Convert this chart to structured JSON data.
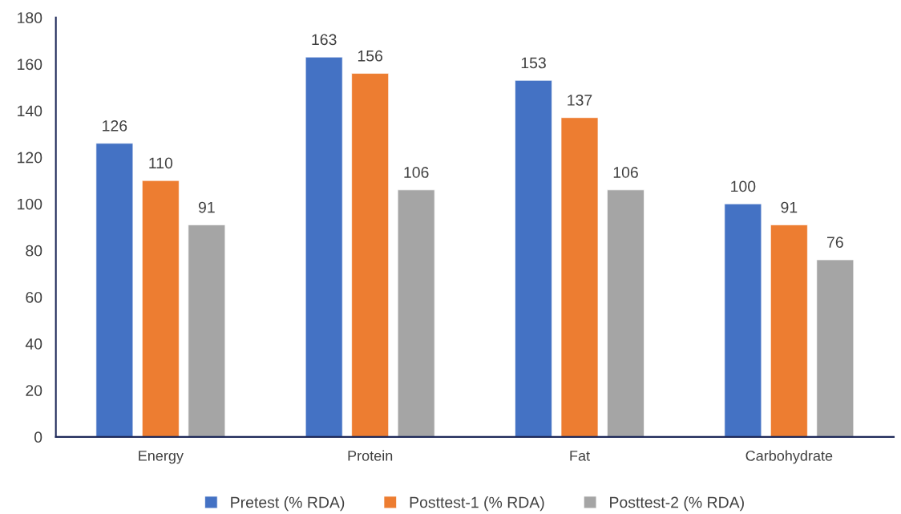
{
  "chart_data": {
    "type": "bar",
    "categories": [
      "Energy",
      "Protein",
      "Fat",
      "Carbohydrate"
    ],
    "series": [
      {
        "name": "Pretest (% RDA)",
        "color": "#4472c4",
        "values": [
          126,
          163,
          153,
          100
        ]
      },
      {
        "name": "Posttest-1 (% RDA)",
        "color": "#ed7d31",
        "values": [
          110,
          156,
          137,
          91
        ]
      },
      {
        "name": "Posttest-2 (% RDA)",
        "color": "#a5a5a5",
        "values": [
          91,
          106,
          106,
          76
        ]
      }
    ],
    "ylim": [
      0,
      180
    ],
    "yticks": [
      0,
      20,
      40,
      60,
      80,
      100,
      120,
      140,
      160,
      180
    ],
    "data_labels": true,
    "legend": "bottom",
    "grid": false
  }
}
